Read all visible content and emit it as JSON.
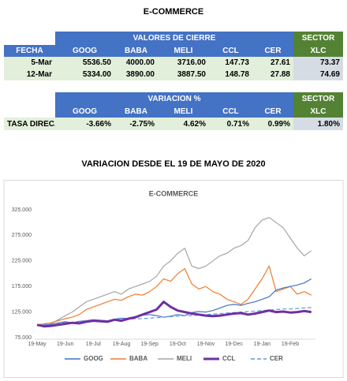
{
  "title": "E-COMMERCE",
  "table1": {
    "group_header": "VALORES DE CIERRE",
    "sector": "SECTOR",
    "columns": [
      "FECHA",
      "GOOG",
      "BABA",
      "MELI",
      "CCL",
      "CER",
      "XLC"
    ],
    "rows": [
      [
        "5-Mar",
        "5536.50",
        "4000.00",
        "3716.00",
        "147.73",
        "27.61",
        "73.37"
      ],
      [
        "12-Mar",
        "5334.00",
        "3890.00",
        "3887.50",
        "148.78",
        "27.88",
        "74.69"
      ]
    ]
  },
  "table2": {
    "group_header": "VARIACION %",
    "sector": "SECTOR",
    "columns": [
      "GOOG",
      "BABA",
      "MELI",
      "CCL",
      "CER",
      "XLC"
    ],
    "rows": [
      [
        "TASA DIREC.",
        "-3.66%",
        "-2.75%",
        "4.62%",
        "0.71%",
        "0.99%",
        "1.80%"
      ]
    ]
  },
  "subtitle": "VARIACION DESDE EL 19 DE MAYO DE 2020",
  "chart_data": {
    "type": "line",
    "title": "E-COMMERCE",
    "categories": [
      "19-May",
      null,
      null,
      null,
      "19-Jun",
      null,
      null,
      null,
      "19-Jul",
      null,
      null,
      null,
      "19-Aug",
      null,
      null,
      null,
      "19-Sep",
      null,
      null,
      null,
      "19-Oct",
      null,
      null,
      null,
      "19-Nov",
      null,
      null,
      null,
      "19-Dec",
      null,
      null,
      null,
      "19-Jan",
      null,
      null,
      null,
      "19-Feb",
      null,
      null,
      null
    ],
    "ylim": [
      75,
      325
    ],
    "yticks": [
      {
        "value": 75,
        "label": "75.000"
      },
      {
        "value": 125,
        "label": "125.000"
      },
      {
        "value": 175,
        "label": "175.000"
      },
      {
        "value": 225,
        "label": "225.000"
      },
      {
        "value": 275,
        "label": "275.000"
      },
      {
        "value": 325,
        "label": "325.000"
      }
    ],
    "grid": false,
    "series": [
      {
        "name": "GOOG",
        "color": "#4472c4",
        "values": [
          100,
          99,
          101,
          104,
          106,
          104,
          107,
          108,
          110,
          109,
          108,
          111,
          113,
          112,
          116,
          119,
          120,
          118,
          115,
          117,
          120,
          118,
          124,
          126,
          125,
          128,
          133,
          138,
          140,
          138,
          142,
          145,
          150,
          155,
          168,
          172,
          175,
          178,
          182,
          190
        ]
      },
      {
        "name": "BABA",
        "color": "#ed7d31",
        "values": [
          100,
          102,
          104,
          108,
          112,
          115,
          120,
          130,
          135,
          140,
          145,
          150,
          148,
          155,
          160,
          158,
          165,
          175,
          190,
          185,
          200,
          210,
          180,
          170,
          175,
          165,
          160,
          150,
          145,
          140,
          150,
          170,
          190,
          215,
          165,
          170,
          175,
          160,
          165,
          158
        ]
      },
      {
        "name": "MELI",
        "color": "#a5a5a5",
        "values": [
          100,
          98,
          102,
          110,
          118,
          125,
          135,
          145,
          150,
          155,
          160,
          165,
          160,
          170,
          175,
          180,
          185,
          195,
          215,
          225,
          240,
          250,
          215,
          210,
          215,
          225,
          235,
          240,
          250,
          255,
          265,
          290,
          305,
          310,
          300,
          290,
          270,
          250,
          235,
          245
        ]
      },
      {
        "name": "CCL",
        "color": "#7030a0",
        "width": 3,
        "values": [
          100,
          97,
          98,
          100,
          102,
          104,
          103,
          106,
          108,
          107,
          106,
          110,
          108,
          112,
          115,
          120,
          125,
          130,
          145,
          135,
          128,
          125,
          122,
          120,
          118,
          117,
          118,
          120,
          122,
          123,
          120,
          122,
          125,
          128,
          125,
          126,
          124,
          125,
          127,
          125
        ]
      },
      {
        "name": "CER",
        "color": "#5b9bd5",
        "dashed": true,
        "values": [
          100,
          101,
          102,
          103,
          104,
          104,
          105,
          106,
          107,
          107,
          108,
          109,
          110,
          111,
          112,
          112,
          113,
          114,
          115,
          116,
          117,
          118,
          118,
          119,
          120,
          121,
          122,
          123,
          124,
          125,
          126,
          127,
          128,
          129,
          130,
          131,
          131,
          132,
          133,
          134
        ]
      }
    ]
  }
}
